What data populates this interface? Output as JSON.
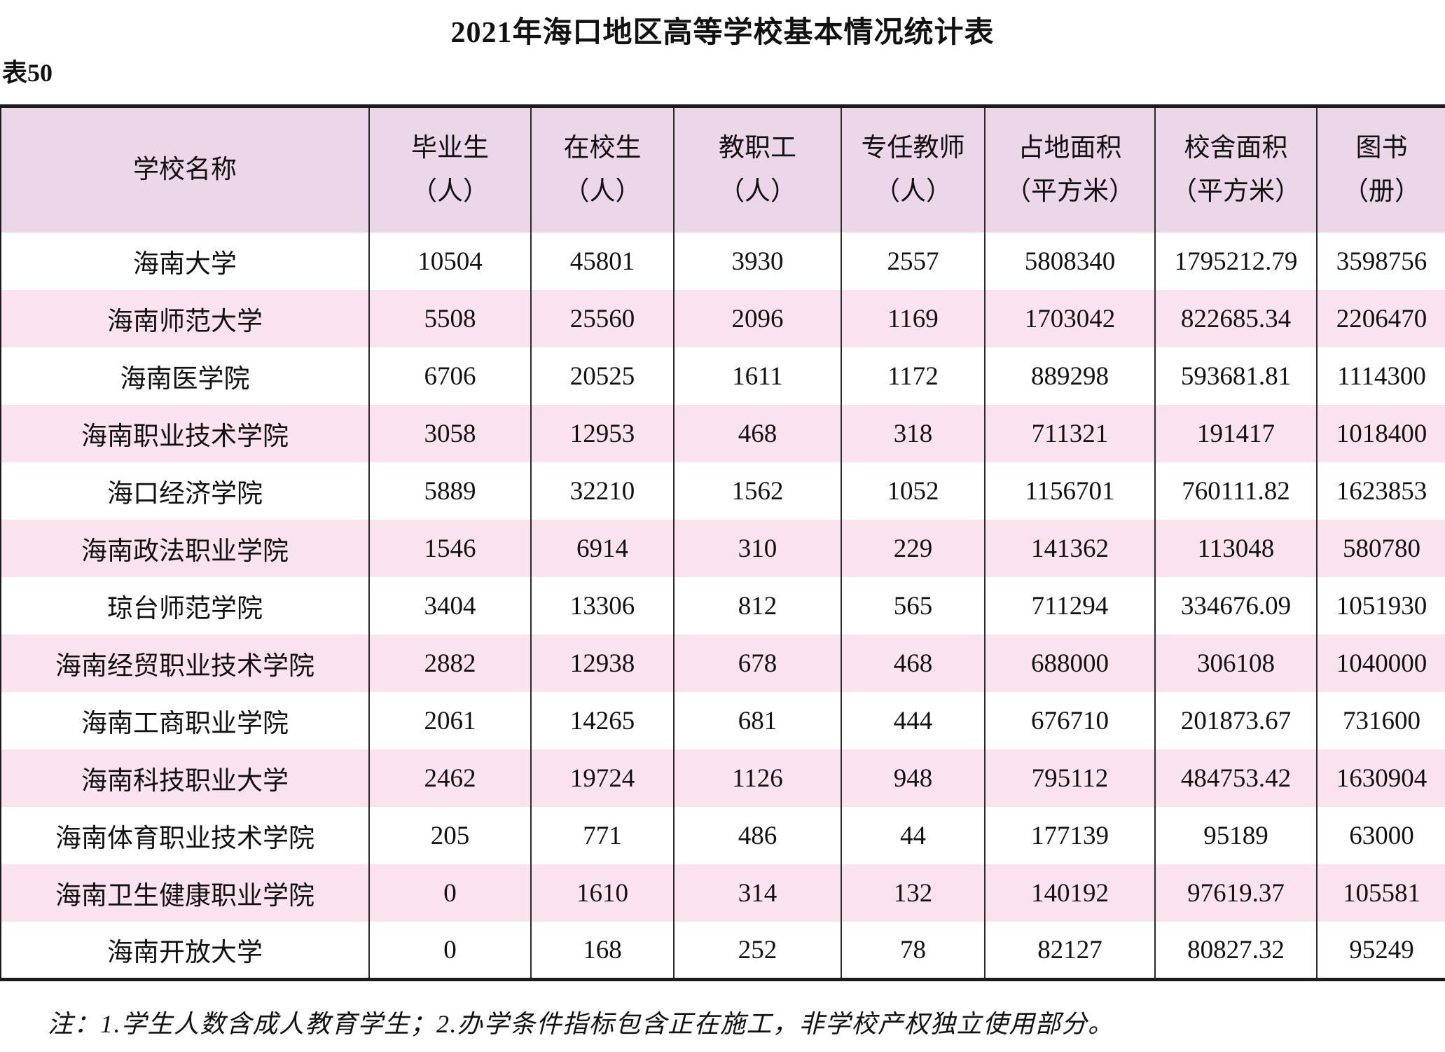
{
  "title": "2021年海口地区高等学校基本情况统计表",
  "table_label": "表50",
  "table": {
    "columns": [
      {
        "label": "学校名称",
        "unit": ""
      },
      {
        "label": "毕业生",
        "unit": "（人）"
      },
      {
        "label": "在校生",
        "unit": "（人）"
      },
      {
        "label": "教职工",
        "unit": "（人）"
      },
      {
        "label": "专任教师",
        "unit": "（人）"
      },
      {
        "label": "占地面积",
        "unit": "（平方米）"
      },
      {
        "label": "校舍面积",
        "unit": "（平方米）"
      },
      {
        "label": "图书",
        "unit": "（册）"
      }
    ],
    "rows": [
      [
        "海南大学",
        "10504",
        "45801",
        "3930",
        "2557",
        "5808340",
        "1795212.79",
        "3598756"
      ],
      [
        "海南师范大学",
        "5508",
        "25560",
        "2096",
        "1169",
        "1703042",
        "822685.34",
        "2206470"
      ],
      [
        "海南医学院",
        "6706",
        "20525",
        "1611",
        "1172",
        "889298",
        "593681.81",
        "1114300"
      ],
      [
        "海南职业技术学院",
        "3058",
        "12953",
        "468",
        "318",
        "711321",
        "191417",
        "1018400"
      ],
      [
        "海口经济学院",
        "5889",
        "32210",
        "1562",
        "1052",
        "1156701",
        "760111.82",
        "1623853"
      ],
      [
        "海南政法职业学院",
        "1546",
        "6914",
        "310",
        "229",
        "141362",
        "113048",
        "580780"
      ],
      [
        "琼台师范学院",
        "3404",
        "13306",
        "812",
        "565",
        "711294",
        "334676.09",
        "1051930"
      ],
      [
        "海南经贸职业技术学院",
        "2882",
        "12938",
        "678",
        "468",
        "688000",
        "306108",
        "1040000"
      ],
      [
        "海南工商职业学院",
        "2061",
        "14265",
        "681",
        "444",
        "676710",
        "201873.67",
        "731600"
      ],
      [
        "海南科技职业大学",
        "2462",
        "19724",
        "1126",
        "948",
        "795112",
        "484753.42",
        "1630904"
      ],
      [
        "海南体育职业技术学院",
        "205",
        "771",
        "486",
        "44",
        "177139",
        "95189",
        "63000"
      ],
      [
        "海南卫生健康职业学院",
        "0",
        "1610",
        "314",
        "132",
        "140192",
        "97619.37",
        "105581"
      ],
      [
        "海南开放大学",
        "0",
        "168",
        "252",
        "78",
        "82127",
        "80827.32",
        "95249"
      ]
    ]
  },
  "footnote": "注：1.学生人数含成人教育学生；2.办学条件指标包含正在施工，非学校产权独立使用部分。",
  "colors": {
    "header_bg": "#ecd7e9",
    "row_alt_bg": "#fae3ee",
    "border": "#1c1c1c",
    "background": "#ffffff",
    "text": "#111111"
  }
}
